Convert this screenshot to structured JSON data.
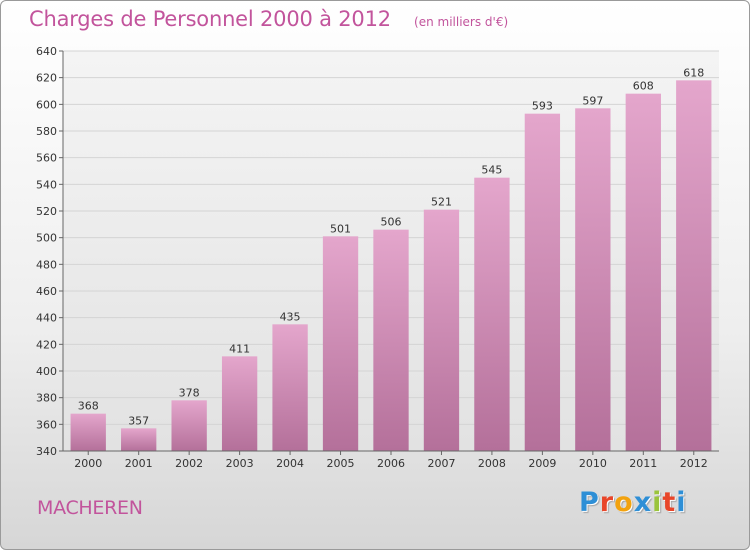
{
  "header": {
    "title": "Charges de Personnel 2000 à 2012",
    "subtitle": "(en milliers d'€)"
  },
  "footer": {
    "commune": "MACHEREN",
    "brand": {
      "letters": [
        "P",
        "r",
        "o",
        "x",
        "i",
        "t",
        "i"
      ],
      "colors": [
        "#2e8fd6",
        "#e8462a",
        "#f2a20f",
        "#2e8fd6",
        "#9ac43b",
        "#e8462a",
        "#2e8fd6"
      ]
    }
  },
  "colors": {
    "bar_top": "#e4a6cc",
    "bar_bottom": "#b4709a",
    "grid": "#d4d4d4",
    "text": "#c2549c"
  },
  "chart_data": {
    "type": "bar",
    "title": "Charges de Personnel 2000 à 2012",
    "subtitle": "(en milliers d'€)",
    "xlabel": "",
    "ylabel": "",
    "categories": [
      "2000",
      "2001",
      "2002",
      "2003",
      "2004",
      "2005",
      "2006",
      "2007",
      "2008",
      "2009",
      "2010",
      "2011",
      "2012"
    ],
    "values": [
      368,
      357,
      378,
      411,
      435,
      501,
      506,
      521,
      545,
      593,
      597,
      608,
      618
    ],
    "ylim": [
      340,
      640
    ],
    "yticks": [
      340,
      360,
      380,
      400,
      420,
      440,
      460,
      480,
      500,
      520,
      540,
      560,
      580,
      600,
      620,
      640
    ],
    "grid": true,
    "legend": "none"
  }
}
